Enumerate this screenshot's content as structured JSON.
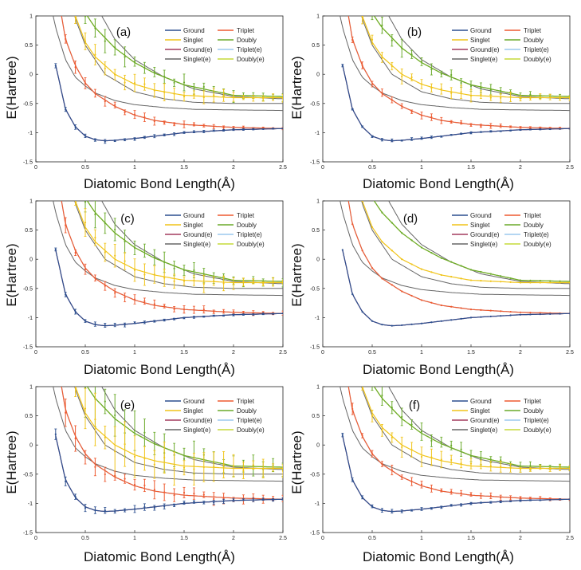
{
  "figure": {
    "common": {
      "type": "line",
      "xlabel": "Diatomic Bond Length(Å)",
      "ylabel": "E(Hartree)",
      "xlim": [
        0,
        2.5
      ],
      "ylim": [
        -1.5,
        1
      ],
      "xticks": [
        "0",
        "0.5",
        "1",
        "1.5",
        "2",
        "2.5"
      ],
      "yticks": [
        "-1.5",
        "-1",
        "-0.5",
        "0",
        "0.5",
        "1"
      ],
      "legend_left": [
        "Ground",
        "Singlet",
        "Ground(e)",
        "Singlet(e)"
      ],
      "legend_right": [
        "Triplet",
        "Doubly",
        "Triplet(e)",
        "Doubly(e)"
      ],
      "colors": {
        "Ground": "#2b4f8f",
        "Singlet": "#f0c419",
        "Ground(e)": "#a33b5e",
        "Singlet(e)": "#666666",
        "Triplet": "#ee5a30",
        "Doubly": "#6aaa2a",
        "Triplet(e)": "#9cc9ee",
        "Doubly(e)": "#c6da3a"
      }
    }
  },
  "chart_data": [
    {
      "panel": "(a)",
      "type": "line",
      "title": "(a)",
      "xlabel": "Diatomic Bond Length(Å)",
      "ylabel": "E(Hartree)",
      "xlim": [
        0,
        2.5
      ],
      "ylim": [
        -1.5,
        1
      ],
      "noise": 0.6,
      "series": [
        {
          "name": "Ground",
          "x": [
            0.2,
            0.3,
            0.4,
            0.5,
            0.6,
            0.7,
            0.8,
            1.0,
            1.2,
            1.5,
            2.0,
            2.5
          ],
          "values": [
            0.16,
            -0.6,
            -0.9,
            -1.06,
            -1.12,
            -1.14,
            -1.13,
            -1.1,
            -1.06,
            -1.0,
            -0.95,
            -0.93
          ]
        },
        {
          "name": "Triplet",
          "x": [
            0.2,
            0.3,
            0.4,
            0.5,
            0.6,
            0.8,
            1.0,
            1.2,
            1.5,
            2.0,
            2.5
          ],
          "values": [
            1.6,
            0.6,
            0.15,
            -0.15,
            -0.33,
            -0.55,
            -0.7,
            -0.79,
            -0.86,
            -0.91,
            -0.93
          ]
        },
        {
          "name": "Singlet",
          "x": [
            0.3,
            0.4,
            0.5,
            0.6,
            0.8,
            1.0,
            1.2,
            1.5,
            2.0,
            2.5
          ],
          "values": [
            1.8,
            1.0,
            0.55,
            0.3,
            0.0,
            -0.17,
            -0.27,
            -0.36,
            -0.4,
            -0.4
          ]
        },
        {
          "name": "Doubly",
          "x": [
            0.4,
            0.5,
            0.6,
            0.8,
            1.0,
            1.2,
            1.5,
            2.0,
            2.5
          ],
          "values": [
            1.5,
            1.05,
            0.8,
            0.45,
            0.2,
            0.02,
            -0.18,
            -0.36,
            -0.38
          ]
        },
        {
          "name": "Singlet(e)",
          "x": [
            0.15,
            0.2,
            0.3,
            0.4,
            0.5,
            0.6,
            0.8,
            1.0,
            1.3,
            1.6,
            2.0,
            2.5
          ],
          "values": [
            1.2,
            0.8,
            0.25,
            -0.05,
            -0.2,
            -0.32,
            -0.45,
            -0.52,
            -0.57,
            -0.6,
            -0.61,
            -0.62
          ]
        }
      ]
    },
    {
      "panel": "(b)",
      "type": "line",
      "title": "(b)",
      "xlabel": "Diatomic Bond Length(Å)",
      "ylabel": "E(Hartree)",
      "xlim": [
        0,
        2.5
      ],
      "ylim": [
        -1.5,
        1
      ],
      "noise": 0.45,
      "series": [
        {
          "name": "Ground",
          "x": [
            0.2,
            0.3,
            0.4,
            0.5,
            0.6,
            0.7,
            0.8,
            1.0,
            1.2,
            1.5,
            2.0,
            2.5
          ],
          "values": [
            0.16,
            -0.6,
            -0.9,
            -1.06,
            -1.12,
            -1.14,
            -1.13,
            -1.1,
            -1.06,
            -1.0,
            -0.95,
            -0.93
          ]
        },
        {
          "name": "Triplet",
          "x": [
            0.2,
            0.3,
            0.4,
            0.5,
            0.6,
            0.8,
            1.0,
            1.2,
            1.5,
            2.0,
            2.5
          ],
          "values": [
            1.6,
            0.6,
            0.15,
            -0.15,
            -0.33,
            -0.55,
            -0.7,
            -0.79,
            -0.86,
            -0.91,
            -0.93
          ]
        },
        {
          "name": "Singlet",
          "x": [
            0.3,
            0.4,
            0.5,
            0.6,
            0.8,
            1.0,
            1.2,
            1.5,
            2.0,
            2.5
          ],
          "values": [
            1.8,
            1.0,
            0.55,
            0.3,
            0.0,
            -0.17,
            -0.27,
            -0.36,
            -0.4,
            -0.4
          ]
        },
        {
          "name": "Doubly",
          "x": [
            0.4,
            0.5,
            0.6,
            0.8,
            1.0,
            1.2,
            1.5,
            2.0,
            2.5
          ],
          "values": [
            1.5,
            1.05,
            0.8,
            0.45,
            0.2,
            0.02,
            -0.18,
            -0.36,
            -0.38
          ]
        },
        {
          "name": "Singlet(e)",
          "x": [
            0.15,
            0.2,
            0.3,
            0.4,
            0.5,
            0.6,
            0.8,
            1.0,
            1.3,
            1.6,
            2.0,
            2.5
          ],
          "values": [
            1.2,
            0.8,
            0.25,
            -0.05,
            -0.2,
            -0.32,
            -0.45,
            -0.52,
            -0.57,
            -0.6,
            -0.61,
            -0.62
          ]
        }
      ]
    },
    {
      "panel": "(c)",
      "type": "line",
      "title": "(c)",
      "xlabel": "Diatomic Bond Length(Å)",
      "ylabel": "E(Hartree)",
      "xlim": [
        0,
        2.5
      ],
      "ylim": [
        -1.5,
        1
      ],
      "noise": 0.7,
      "series": [
        {
          "name": "Ground",
          "x": [
            0.2,
            0.3,
            0.4,
            0.5,
            0.6,
            0.7,
            0.8,
            1.0,
            1.2,
            1.5,
            2.0,
            2.5
          ],
          "values": [
            0.16,
            -0.6,
            -0.9,
            -1.06,
            -1.12,
            -1.14,
            -1.13,
            -1.1,
            -1.06,
            -1.0,
            -0.95,
            -0.93
          ]
        },
        {
          "name": "Triplet",
          "x": [
            0.2,
            0.3,
            0.4,
            0.5,
            0.6,
            0.8,
            1.0,
            1.2,
            1.5,
            2.0,
            2.5
          ],
          "values": [
            1.6,
            0.6,
            0.15,
            -0.15,
            -0.33,
            -0.55,
            -0.7,
            -0.79,
            -0.86,
            -0.91,
            -0.93
          ]
        },
        {
          "name": "Singlet",
          "x": [
            0.3,
            0.4,
            0.5,
            0.6,
            0.8,
            1.0,
            1.2,
            1.5,
            2.0,
            2.5
          ],
          "values": [
            1.8,
            1.0,
            0.55,
            0.3,
            0.0,
            -0.17,
            -0.27,
            -0.36,
            -0.4,
            -0.4
          ]
        },
        {
          "name": "Doubly",
          "x": [
            0.4,
            0.5,
            0.6,
            0.8,
            1.0,
            1.2,
            1.5,
            2.0,
            2.5
          ],
          "values": [
            1.5,
            1.05,
            0.8,
            0.45,
            0.2,
            0.02,
            -0.18,
            -0.36,
            -0.38
          ]
        },
        {
          "name": "Singlet(e)",
          "x": [
            0.15,
            0.2,
            0.3,
            0.4,
            0.5,
            0.6,
            0.8,
            1.0,
            1.3,
            1.6,
            2.0,
            2.5
          ],
          "values": [
            1.2,
            0.8,
            0.25,
            -0.05,
            -0.2,
            -0.32,
            -0.45,
            -0.52,
            -0.57,
            -0.6,
            -0.61,
            -0.62
          ]
        }
      ]
    },
    {
      "panel": "(d)",
      "type": "line",
      "title": "(d)",
      "xlabel": "Diatomic Bond Length(Å)",
      "ylabel": "E(Hartree)",
      "xlim": [
        0,
        2.5
      ],
      "ylim": [
        -1.5,
        1
      ],
      "noise": 0.0,
      "series": [
        {
          "name": "Ground",
          "x": [
            0.2,
            0.3,
            0.4,
            0.5,
            0.6,
            0.7,
            0.8,
            1.0,
            1.2,
            1.5,
            2.0,
            2.5
          ],
          "values": [
            0.16,
            -0.6,
            -0.9,
            -1.06,
            -1.12,
            -1.14,
            -1.13,
            -1.1,
            -1.06,
            -1.0,
            -0.95,
            -0.93
          ]
        },
        {
          "name": "Triplet",
          "x": [
            0.2,
            0.3,
            0.4,
            0.5,
            0.6,
            0.8,
            1.0,
            1.2,
            1.5,
            2.0,
            2.5
          ],
          "values": [
            1.6,
            0.6,
            0.15,
            -0.15,
            -0.33,
            -0.55,
            -0.7,
            -0.79,
            -0.86,
            -0.91,
            -0.93
          ]
        },
        {
          "name": "Singlet",
          "x": [
            0.3,
            0.4,
            0.5,
            0.6,
            0.8,
            1.0,
            1.2,
            1.5,
            2.0,
            2.5
          ],
          "values": [
            1.8,
            1.0,
            0.55,
            0.3,
            0.0,
            -0.17,
            -0.27,
            -0.36,
            -0.4,
            -0.4
          ]
        },
        {
          "name": "Doubly",
          "x": [
            0.4,
            0.5,
            0.6,
            0.8,
            1.0,
            1.2,
            1.5,
            2.0,
            2.5
          ],
          "values": [
            1.5,
            1.05,
            0.8,
            0.45,
            0.2,
            0.02,
            -0.18,
            -0.36,
            -0.38
          ]
        },
        {
          "name": "Singlet(e)",
          "x": [
            0.15,
            0.2,
            0.3,
            0.4,
            0.5,
            0.6,
            0.8,
            1.0,
            1.3,
            1.6,
            2.0,
            2.5
          ],
          "values": [
            1.2,
            0.8,
            0.25,
            -0.05,
            -0.2,
            -0.32,
            -0.45,
            -0.52,
            -0.57,
            -0.6,
            -0.61,
            -0.62
          ]
        }
      ]
    },
    {
      "panel": "(e)",
      "type": "line",
      "title": "(e)",
      "xlabel": "Diatomic Bond Length(Å)",
      "ylabel": "E(Hartree)",
      "xlim": [
        0,
        2.5
      ],
      "ylim": [
        -1.5,
        1
      ],
      "noise": 1.3,
      "series": [
        {
          "name": "Ground",
          "x": [
            0.2,
            0.3,
            0.4,
            0.5,
            0.6,
            0.7,
            0.8,
            1.0,
            1.2,
            1.5,
            2.0,
            2.5
          ],
          "values": [
            0.16,
            -0.6,
            -0.9,
            -1.06,
            -1.12,
            -1.14,
            -1.13,
            -1.1,
            -1.06,
            -1.0,
            -0.95,
            -0.93
          ]
        },
        {
          "name": "Triplet",
          "x": [
            0.2,
            0.3,
            0.4,
            0.5,
            0.6,
            0.8,
            1.0,
            1.2,
            1.5,
            2.0,
            2.5
          ],
          "values": [
            1.6,
            0.6,
            0.15,
            -0.15,
            -0.33,
            -0.55,
            -0.7,
            -0.79,
            -0.86,
            -0.91,
            -0.93
          ]
        },
        {
          "name": "Singlet",
          "x": [
            0.3,
            0.4,
            0.5,
            0.6,
            0.8,
            1.0,
            1.2,
            1.5,
            2.0,
            2.5
          ],
          "values": [
            1.8,
            1.0,
            0.55,
            0.3,
            0.0,
            -0.17,
            -0.27,
            -0.36,
            -0.4,
            -0.4
          ]
        },
        {
          "name": "Doubly",
          "x": [
            0.4,
            0.5,
            0.6,
            0.8,
            1.0,
            1.2,
            1.5,
            2.0,
            2.5
          ],
          "values": [
            1.5,
            1.05,
            0.8,
            0.45,
            0.2,
            0.02,
            -0.18,
            -0.36,
            -0.38
          ]
        },
        {
          "name": "Singlet(e)",
          "x": [
            0.15,
            0.2,
            0.3,
            0.4,
            0.5,
            0.6,
            0.8,
            1.0,
            1.3,
            1.6,
            2.0,
            2.5
          ],
          "values": [
            1.2,
            0.8,
            0.25,
            -0.05,
            -0.2,
            -0.32,
            -0.45,
            -0.52,
            -0.57,
            -0.6,
            -0.61,
            -0.62
          ]
        }
      ]
    },
    {
      "panel": "(f)",
      "type": "line",
      "title": "(f)",
      "xlabel": "Diatomic Bond Length(Å)",
      "ylabel": "E(Hartree)",
      "xlim": [
        0,
        2.5
      ],
      "ylim": [
        -1.5,
        1
      ],
      "noise": 0.55,
      "series": [
        {
          "name": "Ground",
          "x": [
            0.2,
            0.3,
            0.4,
            0.5,
            0.6,
            0.7,
            0.8,
            1.0,
            1.2,
            1.5,
            2.0,
            2.5
          ],
          "values": [
            0.16,
            -0.6,
            -0.9,
            -1.06,
            -1.12,
            -1.14,
            -1.13,
            -1.1,
            -1.06,
            -1.0,
            -0.95,
            -0.93
          ]
        },
        {
          "name": "Triplet",
          "x": [
            0.2,
            0.3,
            0.4,
            0.5,
            0.6,
            0.8,
            1.0,
            1.2,
            1.5,
            2.0,
            2.5
          ],
          "values": [
            1.6,
            0.6,
            0.15,
            -0.15,
            -0.33,
            -0.55,
            -0.7,
            -0.79,
            -0.86,
            -0.91,
            -0.93
          ]
        },
        {
          "name": "Singlet",
          "x": [
            0.3,
            0.4,
            0.5,
            0.6,
            0.8,
            1.0,
            1.2,
            1.5,
            2.0,
            2.5
          ],
          "values": [
            1.8,
            1.0,
            0.55,
            0.3,
            0.0,
            -0.17,
            -0.27,
            -0.36,
            -0.4,
            -0.4
          ]
        },
        {
          "name": "Doubly",
          "x": [
            0.4,
            0.5,
            0.6,
            0.8,
            1.0,
            1.2,
            1.5,
            2.0,
            2.5
          ],
          "values": [
            1.5,
            1.05,
            0.8,
            0.45,
            0.2,
            0.02,
            -0.18,
            -0.36,
            -0.38
          ]
        },
        {
          "name": "Singlet(e)",
          "x": [
            0.15,
            0.2,
            0.3,
            0.4,
            0.5,
            0.6,
            0.8,
            1.0,
            1.3,
            1.6,
            2.0,
            2.5
          ],
          "values": [
            1.2,
            0.8,
            0.25,
            -0.05,
            -0.2,
            -0.32,
            -0.45,
            -0.52,
            -0.57,
            -0.6,
            -0.61,
            -0.62
          ]
        }
      ]
    }
  ]
}
